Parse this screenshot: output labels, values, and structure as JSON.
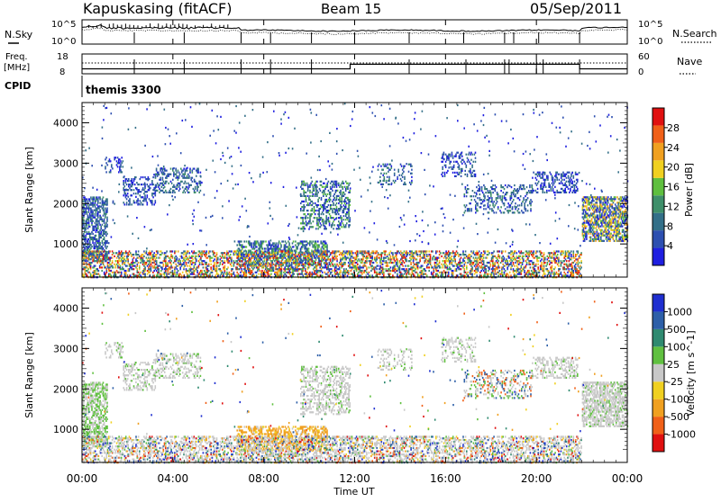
{
  "header": {
    "station": "Kapuskasing (fitACF)",
    "beam": "Beam 15",
    "date": "05/Sep/2011"
  },
  "labels": {
    "nsky": "N.Sky",
    "nsearch": "N.Search",
    "freq_line1": "Freq.",
    "freq_line2": "[MHz]",
    "nave": "Nave",
    "cpid": "CPID",
    "cpid_value": "themis 3300"
  },
  "colors": {
    "power_scale": [
      "#1f1fe0",
      "#2d4fb0",
      "#336f88",
      "#3f8f6a",
      "#5fbf3f",
      "#f0d020",
      "#f0a020",
      "#f06018",
      "#e01010"
    ],
    "velocity_scale": [
      "#1f2fd0",
      "#2d5fa8",
      "#2f8a70",
      "#60c040",
      "#c8c8c8",
      "#f0d020",
      "#f0a020",
      "#f06018",
      "#e01010"
    ]
  },
  "chart_data": [
    {
      "type": "line",
      "panel": "N.Sky / N.Search",
      "ylabel_left": "N.Sky",
      "ylabel_right": "N.Search",
      "y_ticks_left": [
        "10^5",
        "10^0"
      ],
      "y_ticks_right": [
        "10^5",
        "10^0"
      ],
      "xlim_hours": [
        0,
        24
      ]
    },
    {
      "type": "line",
      "panel": "Freq / Nave",
      "ylabel_left": "Freq. [MHz]",
      "ylabel_right": "Nave",
      "y_ticks_left": [
        "18",
        "8"
      ],
      "y_ticks_right": [
        "60",
        "0"
      ],
      "freq_steps_mhz": [
        {
          "from": 0,
          "to": 11.8,
          "value": 10.5
        },
        {
          "from": 11.8,
          "to": 21.9,
          "value": 12.8
        },
        {
          "from": 21.9,
          "to": 24,
          "value": 10.5
        }
      ],
      "xlim_hours": [
        0,
        24
      ]
    },
    {
      "type": "heatmap",
      "panel": "power",
      "ylabel": "Slant Range [km]",
      "ylim": [
        180,
        4500
      ],
      "yticks": [
        1000,
        2000,
        3000,
        4000
      ],
      "colorbar_label": "Power [dB]",
      "colorbar_ticks": [
        4,
        8,
        12,
        16,
        20,
        24,
        28
      ],
      "xlim_hours": [
        0,
        24
      ]
    },
    {
      "type": "heatmap",
      "panel": "velocity",
      "ylabel": "Slant Range [km]",
      "ylim": [
        180,
        4500
      ],
      "yticks": [
        1000,
        2000,
        3000,
        4000
      ],
      "colorbar_label": "Velocity [m s^-1]",
      "colorbar_ticks": [
        "1000",
        "500",
        "100",
        "25",
        "-25",
        "-100",
        "-500",
        "-1000"
      ],
      "xlim_hours": [
        0,
        24
      ]
    }
  ],
  "x_axis": {
    "label": "Time UT",
    "ticks": [
      "00:00",
      "04:00",
      "08:00",
      "12:00",
      "16:00",
      "20:00",
      "00:00"
    ]
  }
}
